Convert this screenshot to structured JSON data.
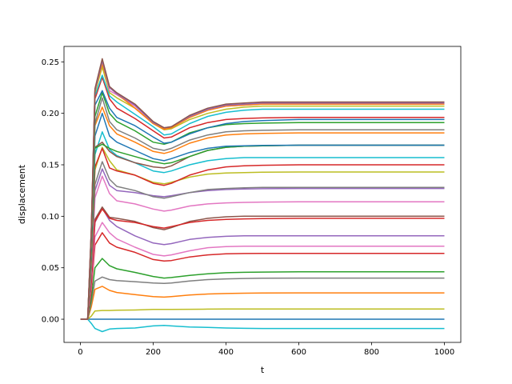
{
  "chart_data": {
    "type": "line",
    "title": "",
    "xlabel": "t",
    "ylabel": "displacement",
    "xlim": [
      -45,
      1045
    ],
    "ylim": [
      -0.0225,
      0.265
    ],
    "xticks": [
      0,
      200,
      400,
      600,
      800,
      1000
    ],
    "xtick_labels": [
      "0",
      "200",
      "400",
      "600",
      "800",
      "1000"
    ],
    "yticks": [
      0.0,
      0.05,
      0.1,
      0.15,
      0.2,
      0.25
    ],
    "ytick_labels": [
      "0.00",
      "0.05",
      "0.10",
      "0.15",
      "0.20",
      "0.25"
    ],
    "grid": false,
    "legend": "none",
    "x": [
      0,
      20,
      30,
      40,
      60,
      80,
      100,
      150,
      200,
      230,
      250,
      300,
      350,
      400,
      450,
      500,
      600,
      800,
      1000
    ],
    "series": [
      {
        "color": "#1f77b4",
        "values": [
          0,
          0,
          0,
          0,
          0,
          0,
          0,
          0,
          0,
          0,
          0,
          0,
          0,
          0,
          0,
          0,
          0,
          0,
          0
        ]
      },
      {
        "color": "#17becf",
        "values": [
          0,
          0,
          -0.004,
          -0.009,
          -0.012,
          -0.0095,
          -0.009,
          -0.0085,
          -0.0065,
          -0.006,
          -0.0065,
          -0.0075,
          -0.008,
          -0.0085,
          -0.0088,
          -0.009,
          -0.009,
          -0.009,
          -0.009
        ]
      },
      {
        "color": "#bcbd22",
        "values": [
          0,
          0,
          0.003,
          0.008,
          0.0085,
          0.0085,
          0.0088,
          0.009,
          0.0095,
          0.0095,
          0.0095,
          0.0097,
          0.0098,
          0.0099,
          0.0099,
          0.01,
          0.01,
          0.01,
          0.01
        ]
      },
      {
        "color": "#ff7f0e",
        "values": [
          0,
          0,
          0.012,
          0.029,
          0.032,
          0.028,
          0.026,
          0.024,
          0.022,
          0.0215,
          0.022,
          0.0235,
          0.0245,
          0.025,
          0.0253,
          0.0255,
          0.0256,
          0.0256,
          0.0256
        ]
      },
      {
        "color": "#7f7f7f",
        "values": [
          0,
          0,
          0.016,
          0.037,
          0.041,
          0.0385,
          0.0375,
          0.0365,
          0.0352,
          0.0348,
          0.0352,
          0.0372,
          0.0385,
          0.0392,
          0.0396,
          0.0398,
          0.04,
          0.04,
          0.04
        ]
      },
      {
        "color": "#2ca02c",
        "values": [
          0,
          0,
          0.02,
          0.05,
          0.059,
          0.052,
          0.049,
          0.0455,
          0.0415,
          0.04,
          0.0405,
          0.0425,
          0.0442,
          0.0452,
          0.0456,
          0.0458,
          0.046,
          0.046,
          0.046
        ]
      },
      {
        "color": "#d62728",
        "values": [
          0,
          0,
          0.028,
          0.072,
          0.084,
          0.074,
          0.07,
          0.065,
          0.058,
          0.0565,
          0.057,
          0.0605,
          0.0625,
          0.0635,
          0.0638,
          0.064,
          0.064,
          0.064,
          0.064
        ]
      },
      {
        "color": "#e377c2",
        "values": [
          0,
          0,
          0.031,
          0.08,
          0.094,
          0.084,
          0.078,
          0.07,
          0.063,
          0.0615,
          0.0625,
          0.0665,
          0.0695,
          0.0705,
          0.071,
          0.071,
          0.071,
          0.071,
          0.071
        ]
      },
      {
        "color": "#9467bd",
        "values": [
          0,
          0,
          0.036,
          0.094,
          0.108,
          0.096,
          0.09,
          0.081,
          0.074,
          0.0725,
          0.0735,
          0.0775,
          0.0795,
          0.0805,
          0.081,
          0.081,
          0.081,
          0.081,
          0.081
        ]
      },
      {
        "color": "#8c564b",
        "values": [
          0,
          0,
          0.037,
          0.097,
          0.109,
          0.099,
          0.098,
          0.095,
          0.089,
          0.087,
          0.089,
          0.095,
          0.098,
          0.0995,
          0.1,
          0.1,
          0.1,
          0.1,
          0.1
        ]
      },
      {
        "color": "#d62728",
        "values": [
          0,
          0,
          0.036,
          0.095,
          0.107,
          0.098,
          0.096,
          0.094,
          0.09,
          0.0885,
          0.09,
          0.094,
          0.096,
          0.097,
          0.0975,
          0.0978,
          0.098,
          0.098,
          0.098
        ]
      },
      {
        "color": "#e377c2",
        "values": [
          0,
          0,
          0.045,
          0.118,
          0.139,
          0.122,
          0.115,
          0.112,
          0.107,
          0.105,
          0.106,
          0.11,
          0.112,
          0.113,
          0.1135,
          0.1138,
          0.114,
          0.114,
          0.114
        ]
      },
      {
        "color": "#9467bd",
        "values": [
          0,
          0,
          0.048,
          0.125,
          0.146,
          0.13,
          0.125,
          0.123,
          0.12,
          0.119,
          0.12,
          0.123,
          0.125,
          0.126,
          0.1265,
          0.1268,
          0.127,
          0.127,
          0.127
        ]
      },
      {
        "color": "#7f7f7f",
        "values": [
          0,
          0,
          0.05,
          0.131,
          0.153,
          0.136,
          0.129,
          0.125,
          0.119,
          0.1175,
          0.119,
          0.123,
          0.126,
          0.127,
          0.1276,
          0.128,
          0.128,
          0.128,
          0.128
        ]
      },
      {
        "color": "#bcbd22",
        "values": [
          0,
          0,
          0.055,
          0.145,
          0.167,
          0.154,
          0.145,
          0.14,
          0.133,
          0.1315,
          0.133,
          0.138,
          0.141,
          0.142,
          0.1425,
          0.1428,
          0.143,
          0.143,
          0.143
        ]
      },
      {
        "color": "#d62728",
        "values": [
          0,
          0,
          0.057,
          0.148,
          0.166,
          0.147,
          0.144,
          0.14,
          0.132,
          0.13,
          0.132,
          0.14,
          0.145,
          0.148,
          0.149,
          0.1495,
          0.15,
          0.15,
          0.15
        ]
      },
      {
        "color": "#17becf",
        "values": [
          0,
          0,
          0.061,
          0.16,
          0.182,
          0.165,
          0.159,
          0.152,
          0.144,
          0.1425,
          0.144,
          0.15,
          0.154,
          0.156,
          0.157,
          0.157,
          0.157,
          0.157,
          0.157
        ]
      },
      {
        "color": "#8c564b",
        "values": [
          0,
          0,
          0.064,
          0.167,
          0.172,
          0.163,
          0.158,
          0.152,
          0.148,
          0.147,
          0.149,
          0.158,
          0.164,
          0.167,
          0.168,
          0.1685,
          0.169,
          0.169,
          0.169
        ]
      },
      {
        "color": "#2ca02c",
        "values": [
          0,
          0,
          0.064,
          0.166,
          0.17,
          0.166,
          0.163,
          0.158,
          0.153,
          0.151,
          0.152,
          0.158,
          0.164,
          0.167,
          0.168,
          0.1685,
          0.169,
          0.169,
          0.169
        ]
      },
      {
        "color": "#1f77b4",
        "values": [
          0,
          0,
          0.068,
          0.178,
          0.2,
          0.178,
          0.172,
          0.164,
          0.156,
          0.154,
          0.156,
          0.162,
          0.166,
          0.168,
          0.1685,
          0.1688,
          0.169,
          0.169,
          0.169
        ]
      },
      {
        "color": "#ff7f0e",
        "values": [
          0,
          0,
          0.072,
          0.188,
          0.206,
          0.188,
          0.18,
          0.172,
          0.163,
          0.161,
          0.163,
          0.171,
          0.176,
          0.179,
          0.18,
          0.1805,
          0.181,
          0.181,
          0.181
        ]
      },
      {
        "color": "#7f7f7f",
        "values": [
          0,
          0,
          0.073,
          0.19,
          0.215,
          0.192,
          0.184,
          0.176,
          0.166,
          0.164,
          0.166,
          0.174,
          0.179,
          0.182,
          0.183,
          0.1835,
          0.184,
          0.184,
          0.184
        ]
      },
      {
        "color": "#2ca02c",
        "values": [
          0,
          0,
          0.075,
          0.197,
          0.22,
          0.2,
          0.192,
          0.183,
          0.172,
          0.17,
          0.172,
          0.181,
          0.186,
          0.189,
          0.19,
          0.1905,
          0.191,
          0.191,
          0.191
        ]
      },
      {
        "color": "#1f77b4",
        "values": [
          0,
          0,
          0.08,
          0.208,
          0.222,
          0.205,
          0.196,
          0.188,
          0.177,
          0.171,
          0.172,
          0.18,
          0.186,
          0.19,
          0.192,
          0.193,
          0.194,
          0.194,
          0.194
        ]
      },
      {
        "color": "#d62728",
        "values": [
          0,
          0,
          0.082,
          0.214,
          0.235,
          0.214,
          0.205,
          0.195,
          0.183,
          0.176,
          0.177,
          0.186,
          0.191,
          0.194,
          0.195,
          0.1955,
          0.196,
          0.196,
          0.196
        ]
      },
      {
        "color": "#17becf",
        "values": [
          0,
          0,
          0.083,
          0.217,
          0.237,
          0.217,
          0.211,
          0.199,
          0.187,
          0.179,
          0.18,
          0.19,
          0.197,
          0.201,
          0.203,
          0.204,
          0.204,
          0.204,
          0.204
        ]
      },
      {
        "color": "#bcbd22",
        "values": [
          0,
          0,
          0.084,
          0.22,
          0.245,
          0.22,
          0.215,
          0.205,
          0.19,
          0.184,
          0.185,
          0.194,
          0.2,
          0.204,
          0.206,
          0.207,
          0.207,
          0.207,
          0.207
        ]
      },
      {
        "color": "#e377c2",
        "values": [
          0,
          0,
          0.086,
          0.223,
          0.25,
          0.222,
          0.218,
          0.207,
          0.191,
          0.185,
          0.186,
          0.196,
          0.203,
          0.207,
          0.208,
          0.209,
          0.209,
          0.209,
          0.209
        ]
      },
      {
        "color": "#ff7f0e",
        "values": [
          0,
          0,
          0.085,
          0.222,
          0.248,
          0.225,
          0.219,
          0.205,
          0.19,
          0.1845,
          0.186,
          0.196,
          0.203,
          0.207,
          0.208,
          0.209,
          0.209,
          0.209,
          0.209
        ]
      },
      {
        "color": "#9467bd",
        "values": [
          0,
          0,
          0.085,
          0.222,
          0.251,
          0.225,
          0.219,
          0.208,
          0.191,
          0.186,
          0.187,
          0.197,
          0.204,
          0.208,
          0.209,
          0.21,
          0.21,
          0.21,
          0.21
        ]
      },
      {
        "color": "#8c564b",
        "values": [
          0,
          0,
          0.087,
          0.224,
          0.253,
          0.226,
          0.22,
          0.209,
          0.192,
          0.186,
          0.187,
          0.198,
          0.205,
          0.209,
          0.21,
          0.211,
          0.211,
          0.211,
          0.211
        ]
      }
    ]
  }
}
